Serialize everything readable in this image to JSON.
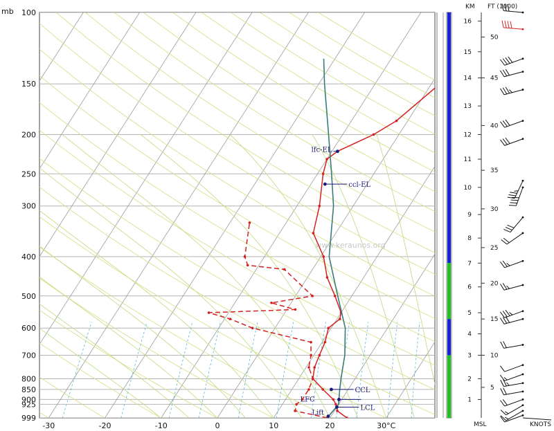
{
  "chart_data": {
    "type": "line",
    "title": "",
    "xlabel": "",
    "ylabel": "",
    "pressure_unit_label": "mb",
    "y_scale": "log-pressure",
    "ylim_mb": [
      999,
      100
    ],
    "xlim_c": [
      -31,
      40
    ],
    "pressure_ticks": [
      {
        "p": 100,
        "label": "100"
      },
      {
        "p": 150,
        "label": "150"
      },
      {
        "p": 200,
        "label": "200"
      },
      {
        "p": 250,
        "label": "250"
      },
      {
        "p": 300,
        "label": "300"
      },
      {
        "p": 400,
        "label": "400"
      },
      {
        "p": 500,
        "label": "500"
      },
      {
        "p": 600,
        "label": "600"
      },
      {
        "p": 700,
        "label": "700"
      },
      {
        "p": 800,
        "label": "800"
      },
      {
        "p": 850,
        "label": "850"
      },
      {
        "p": 900,
        "label": "900"
      },
      {
        "p": 925,
        "label": "925"
      },
      {
        "p": 999,
        "label": "999"
      }
    ],
    "temperature_ticks": [
      {
        "t": -30,
        "label": "-30"
      },
      {
        "t": -20,
        "label": "-20"
      },
      {
        "t": -10,
        "label": "-10"
      },
      {
        "t": 0,
        "label": "0"
      },
      {
        "t": 10,
        "label": "10"
      },
      {
        "t": 20,
        "label": "20"
      },
      {
        "t": 30,
        "label": "30°C"
      }
    ],
    "grid": true,
    "series": [
      {
        "role": "temperature",
        "color": "#d42020",
        "style": "solid",
        "points": [
          {
            "p": 999,
            "t": 23.0
          },
          {
            "p": 960,
            "t": 20.5
          },
          {
            "p": 925,
            "t": 19.5
          },
          {
            "p": 900,
            "t": 18.5
          },
          {
            "p": 850,
            "t": 15.5
          },
          {
            "p": 800,
            "t": 12.5
          },
          {
            "p": 750,
            "t": 11.5
          },
          {
            "p": 700,
            "t": 11.0
          },
          {
            "p": 650,
            "t": 10.5
          },
          {
            "p": 600,
            "t": 9.5
          },
          {
            "p": 570,
            "t": 10.5
          },
          {
            "p": 550,
            "t": 10.0
          },
          {
            "p": 500,
            "t": 7.0
          },
          {
            "p": 450,
            "t": 3.5
          },
          {
            "p": 400,
            "t": 0.5
          },
          {
            "p": 350,
            "t": -4.0
          },
          {
            "p": 300,
            "t": -6.0
          },
          {
            "p": 250,
            "t": -9.0
          },
          {
            "p": 230,
            "t": -10.0
          },
          {
            "p": 220,
            "t": -9.0
          },
          {
            "p": 200,
            "t": -4.5
          },
          {
            "p": 185,
            "t": -2.0
          },
          {
            "p": 150,
            "t": 1.5
          },
          {
            "p": 125,
            "t": 7.5
          },
          {
            "p": 115,
            "t": 10.5
          },
          {
            "p": 100,
            "t": 11.0
          }
        ]
      },
      {
        "role": "dewpoint",
        "color": "#d42020",
        "style": "dashed",
        "points": [
          {
            "p": 999,
            "t": 19.5
          },
          {
            "p": 960,
            "t": 13.0
          },
          {
            "p": 925,
            "t": 12.5
          },
          {
            "p": 900,
            "t": 13.0
          },
          {
            "p": 850,
            "t": 13.0
          },
          {
            "p": 800,
            "t": 12.5
          },
          {
            "p": 750,
            "t": 10.5
          },
          {
            "p": 700,
            "t": 9.5
          },
          {
            "p": 650,
            "t": 8.0
          },
          {
            "p": 600,
            "t": -4.0
          },
          {
            "p": 570,
            "t": -9.0
          },
          {
            "p": 550,
            "t": -13.5
          },
          {
            "p": 540,
            "t": 1.5
          },
          {
            "p": 520,
            "t": -3.5
          },
          {
            "p": 500,
            "t": 3.0
          },
          {
            "p": 430,
            "t": -5.0
          },
          {
            "p": 420,
            "t": -12.0
          },
          {
            "p": 400,
            "t": -13.5
          },
          {
            "p": 330,
            "t": -16.5
          }
        ]
      },
      {
        "role": "parcel-path",
        "color": "#3a7a7a",
        "style": "solid",
        "points": [
          {
            "p": 999,
            "t": 19.5
          },
          {
            "p": 925,
            "t": 20.0
          },
          {
            "p": 900,
            "t": 19.5
          },
          {
            "p": 850,
            "t": 18.5
          },
          {
            "p": 800,
            "t": 17.5
          },
          {
            "p": 700,
            "t": 15.5
          },
          {
            "p": 600,
            "t": 12.5
          },
          {
            "p": 500,
            "t": 7.5
          },
          {
            "p": 400,
            "t": 1.5
          },
          {
            "p": 300,
            "t": -3.5
          },
          {
            "p": 250,
            "t": -7.5
          },
          {
            "p": 200,
            "t": -12.5
          },
          {
            "p": 150,
            "t": -19.0
          },
          {
            "p": 130,
            "t": -22.0
          }
        ]
      }
    ],
    "annotations": [
      {
        "label": "lfc-EL",
        "p": 220,
        "t": -9.0
      },
      {
        "label": "ccl-EL",
        "p": 265,
        "t": -7.5
      },
      {
        "label": "CCL",
        "p": 850,
        "t": 17.0
      },
      {
        "label": "LFC",
        "p": 900,
        "t": 19.5
      },
      {
        "label": "LCL",
        "p": 940,
        "t": 20.0
      },
      {
        "label": "Lift",
        "p": 990,
        "t": 19.5
      }
    ],
    "watermark": "www.keraunos.org",
    "stability_bar": {
      "segments": [
        {
          "from_p": 100,
          "to_p": 415,
          "color": "#1a22d8"
        },
        {
          "from_p": 415,
          "to_p": 570,
          "color": "#22c022"
        },
        {
          "from_p": 570,
          "to_p": 700,
          "color": "#1a22d8"
        },
        {
          "from_p": 700,
          "to_p": 999,
          "color": "#22c022"
        }
      ]
    },
    "km_axis": {
      "header": "KM",
      "ticks": [
        {
          "v": 1,
          "label": "1",
          "p": 900
        },
        {
          "v": 2,
          "label": "2",
          "p": 800
        },
        {
          "v": 3,
          "label": "3",
          "p": 700
        },
        {
          "v": 4,
          "label": "4",
          "p": 620
        },
        {
          "v": 5,
          "label": "5",
          "p": 550
        },
        {
          "v": 6,
          "label": "6",
          "p": 475
        },
        {
          "v": 7,
          "label": "7",
          "p": 415
        },
        {
          "v": 8,
          "label": "8",
          "p": 360
        },
        {
          "v": 9,
          "label": "9",
          "p": 315
        },
        {
          "v": 10,
          "label": "10",
          "p": 270
        },
        {
          "v": 11,
          "label": "11",
          "p": 230
        },
        {
          "v": 12,
          "label": "12",
          "p": 200
        },
        {
          "v": 13,
          "label": "13",
          "p": 170
        },
        {
          "v": 14,
          "label": "14",
          "p": 145
        },
        {
          "v": 15,
          "label": "15",
          "p": 125
        },
        {
          "v": 16,
          "label": "16",
          "p": 105
        }
      ],
      "base_label": "MSL"
    },
    "ft_axis": {
      "header": "FT (1000)",
      "ticks": [
        {
          "v": 5,
          "label": "5",
          "p": 840
        },
        {
          "v": 10,
          "label": "10",
          "p": 700
        },
        {
          "v": 15,
          "label": "15",
          "p": 570
        },
        {
          "v": 20,
          "label": "20",
          "p": 465
        },
        {
          "v": 25,
          "label": "25",
          "p": 380
        },
        {
          "v": 30,
          "label": "30",
          "p": 305
        },
        {
          "v": 35,
          "label": "35",
          "p": 245
        },
        {
          "v": 40,
          "label": "40",
          "p": 190
        },
        {
          "v": 45,
          "label": "45",
          "p": 145
        },
        {
          "v": 50,
          "label": "50",
          "p": 115
        }
      ]
    },
    "wind_barbs_label": "KNOTS",
    "wind_barbs": [
      {
        "p": 985,
        "dir": 250,
        "kt": 10
      },
      {
        "p": 960,
        "dir": 240,
        "kt": 15
      },
      {
        "p": 930,
        "dir": 240,
        "kt": 15
      },
      {
        "p": 900,
        "dir": 250,
        "kt": 20
      },
      {
        "p": 860,
        "dir": 260,
        "kt": 20
      },
      {
        "p": 820,
        "dir": 260,
        "kt": 25
      },
      {
        "p": 780,
        "dir": 250,
        "kt": 15
      },
      {
        "p": 740,
        "dir": 250,
        "kt": 10
      },
      {
        "p": 660,
        "dir": 260,
        "kt": 20
      },
      {
        "p": 570,
        "dir": 255,
        "kt": 30
      },
      {
        "p": 545,
        "dir": 250,
        "kt": 35
      },
      {
        "p": 470,
        "dir": 255,
        "kt": 25
      },
      {
        "p": 410,
        "dir": 250,
        "kt": 25
      },
      {
        "p": 350,
        "dir": 235,
        "kt": 20
      },
      {
        "p": 320,
        "dir": 220,
        "kt": 30
      },
      {
        "p": 270,
        "dir": 200,
        "kt": 40
      },
      {
        "p": 260,
        "dir": 205,
        "kt": 35
      },
      {
        "p": 205,
        "dir": 250,
        "kt": 30
      },
      {
        "p": 185,
        "dir": 250,
        "kt": 30
      },
      {
        "p": 155,
        "dir": 255,
        "kt": 35
      },
      {
        "p": 140,
        "dir": 255,
        "kt": 30
      },
      {
        "p": 130,
        "dir": 250,
        "kt": 40
      },
      {
        "p": 110,
        "dir": 275,
        "kt": 40,
        "color": "#d42020"
      },
      {
        "p": 100,
        "dir": 275,
        "kt": 30
      }
    ]
  }
}
